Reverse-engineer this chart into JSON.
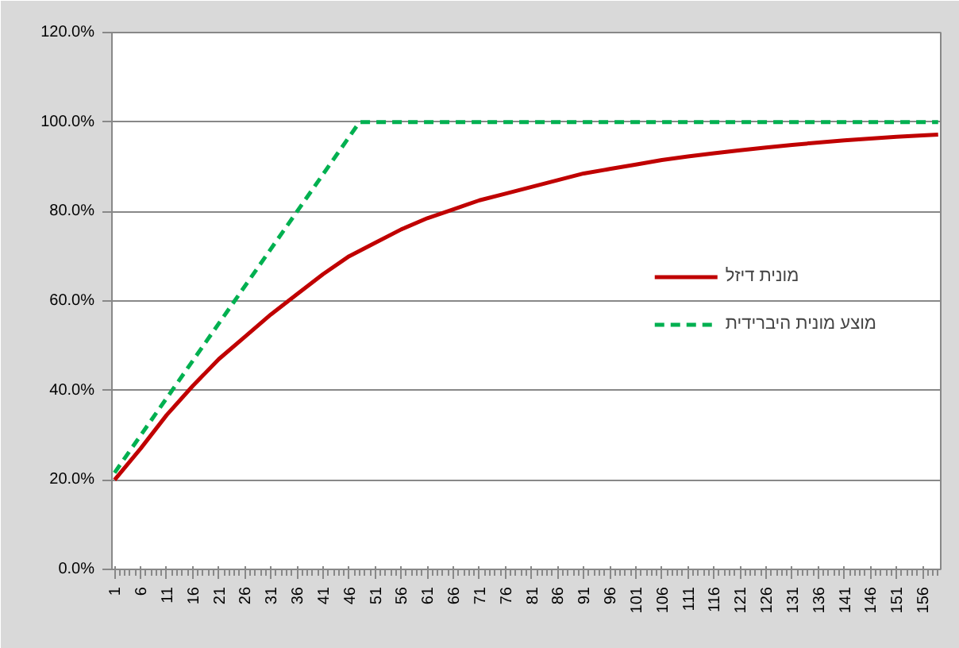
{
  "chart_data": {
    "type": "line",
    "xlim": [
      0.5,
      159.5
    ],
    "xticks": [
      1,
      6,
      11,
      16,
      21,
      26,
      31,
      36,
      41,
      46,
      51,
      56,
      61,
      66,
      71,
      76,
      81,
      86,
      91,
      96,
      101,
      106,
      111,
      116,
      121,
      126,
      131,
      136,
      141,
      146,
      151,
      156
    ],
    "ylim": [
      0,
      120
    ],
    "yticks": [
      {
        "value": 0,
        "label": "0.0%"
      },
      {
        "value": 20,
        "label": "20.0%"
      },
      {
        "value": 40,
        "label": "40.0%"
      },
      {
        "value": 60,
        "label": "60.0%"
      },
      {
        "value": 80,
        "label": "80.0%"
      },
      {
        "value": 100,
        "label": "100.0%"
      },
      {
        "value": 120,
        "label": "120.0%"
      }
    ],
    "grid": "y",
    "legend": "right",
    "series": [
      {
        "name": "מונית דיזל",
        "color": "#c00000",
        "line_style": "solid",
        "x": [
          1,
          6,
          11,
          16,
          21,
          26,
          31,
          36,
          41,
          46,
          51,
          56,
          61,
          66,
          71,
          76,
          81,
          86,
          91,
          96,
          101,
          106,
          111,
          116,
          121,
          126,
          131,
          136,
          141,
          146,
          151,
          156,
          159
        ],
        "values": [
          20,
          27,
          34.5,
          41,
          47,
          52,
          57,
          61.5,
          66,
          70,
          73,
          76,
          78.5,
          80.5,
          82.5,
          84,
          85.5,
          87,
          88.5,
          89.5,
          90.5,
          91.5,
          92.3,
          93,
          93.7,
          94.3,
          94.9,
          95.4,
          95.9,
          96.3,
          96.7,
          97,
          97.2
        ]
      },
      {
        "name": "מוצע מונית היברידית",
        "color": "#00b050",
        "line_style": "dashed",
        "x": [
          1,
          48,
          159
        ],
        "values": [
          21.6,
          100,
          100
        ]
      }
    ]
  }
}
